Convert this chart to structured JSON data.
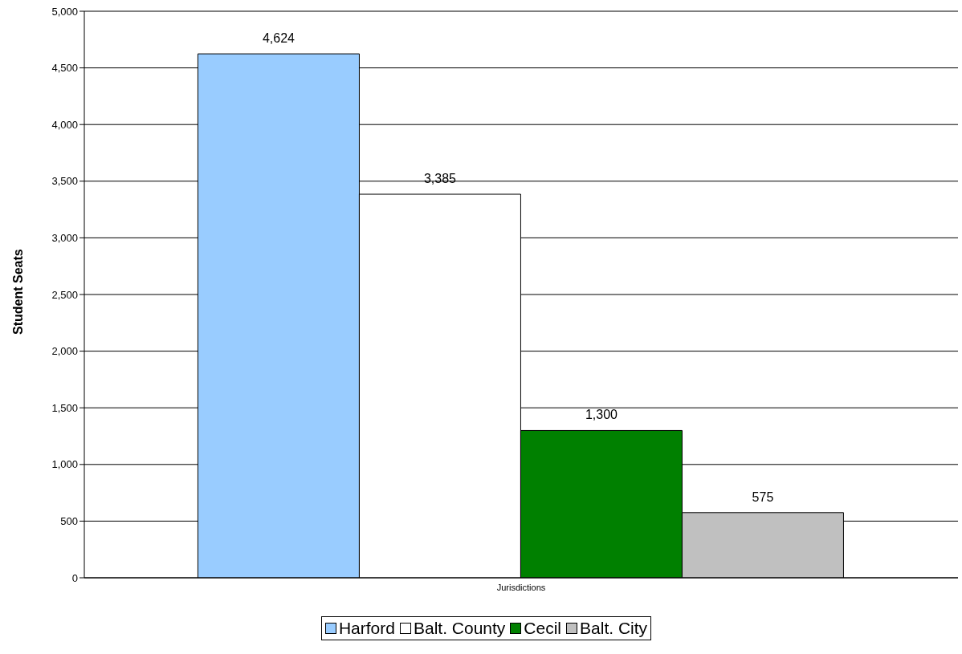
{
  "chart_data": {
    "type": "bar",
    "ylabel": "Student Seats",
    "categories": [
      "Jurisdictions"
    ],
    "series": [
      {
        "name": "Harford",
        "color": "#99ccff",
        "values": [
          4624
        ],
        "value_labels": [
          "4,624"
        ]
      },
      {
        "name": "Balt. County",
        "color": "#ffffff",
        "values": [
          3385
        ],
        "value_labels": [
          "3,385"
        ]
      },
      {
        "name": "Cecil",
        "color": "#008000",
        "values": [
          1300
        ],
        "value_labels": [
          "1,300"
        ]
      },
      {
        "name": "Balt. City",
        "color": "#c0c0c0",
        "values": [
          575
        ],
        "value_labels": [
          "575"
        ]
      }
    ],
    "ylim": [
      0,
      5000
    ],
    "yticks": [
      0,
      500,
      {
        "value": 1000,
        "label": "1,000"
      },
      {
        "value": 1500,
        "label": "1,500"
      },
      {
        "value": 2000,
        "label": "2,000"
      },
      {
        "value": 2500,
        "label": "2,500"
      },
      {
        "value": 3000,
        "label": "3,000"
      },
      {
        "value": 3500,
        "label": "3,500"
      },
      {
        "value": 4000,
        "label": "4,000"
      },
      {
        "value": 4500,
        "label": "4,500"
      },
      {
        "value": 5000,
        "label": "5,000"
      }
    ],
    "grid": "y",
    "legend": "bottom"
  }
}
